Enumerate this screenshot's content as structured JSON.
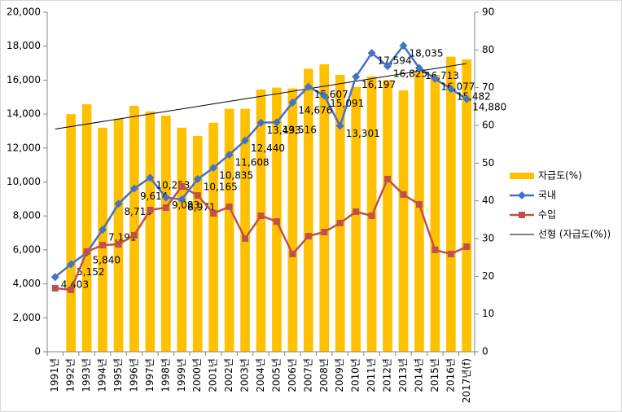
{
  "chart_data": {
    "type": "combo",
    "categories": [
      "1991년",
      "1992년",
      "1993년",
      "1994년",
      "1995년",
      "1996년",
      "1997년",
      "1998년",
      "1999년",
      "2000년",
      "2001년",
      "2002년",
      "2003년",
      "2004년",
      "2005년",
      "2006년",
      "2007년",
      "2008년",
      "2009년",
      "2010년",
      "2011년",
      "2012년",
      "2013년",
      "2014년",
      "2015년",
      "2016년",
      "2017년(f)"
    ],
    "series": [
      {
        "name": "자급도(%)",
        "type": "bar",
        "axis": "y2",
        "color": "#FFC000",
        "values": [
          null,
          63,
          65.6,
          59.4,
          61.8,
          65.2,
          63.7,
          62.6,
          59.4,
          57.2,
          60.7,
          64.4,
          64.4,
          69.5,
          70,
          69.8,
          75,
          76.2,
          73.4,
          70.2,
          73,
          72,
          69.3,
          74.3,
          73.4,
          78.2,
          77.5
        ]
      },
      {
        "name": "국내",
        "type": "line",
        "marker": "diamond",
        "color": "#4472C4",
        "values": [
          4403,
          5152,
          5840,
          7191,
          8715,
          9614,
          10253,
          9083,
          8971,
          10165,
          10835,
          11608,
          12440,
          13493,
          13516,
          14676,
          15607,
          15091,
          13301,
          16197,
          17594,
          16825,
          18035,
          16713,
          16077,
          15482,
          14880
        ],
        "value_labels": [
          "4,403",
          "5,152",
          "5,840",
          "7,191",
          "8,715",
          "9,614",
          "10,253",
          "9,083",
          "8,971",
          "10,165",
          "10,835",
          "11,608",
          "12,440",
          "13,493",
          "13,516",
          "14,676",
          "15,607",
          "15,091",
          "13,301",
          "16,197",
          "17,594",
          "16,825",
          "18,035",
          "16,713",
          "16,077",
          "15,482",
          "14,880"
        ]
      },
      {
        "name": "수입",
        "type": "line",
        "marker": "square",
        "color": "#C0504D",
        "values": [
          3740,
          3650,
          5900,
          6280,
          6330,
          6860,
          8350,
          8490,
          9740,
          9210,
          8150,
          8540,
          6670,
          8010,
          7670,
          5760,
          6810,
          7050,
          7580,
          8250,
          8010,
          10170,
          9260,
          8680,
          6000,
          5760,
          6190
        ]
      }
    ],
    "trendline": {
      "name": "선형 (자급도(%))",
      "of": "자급도(%)",
      "color": "#000000"
    },
    "ylim": [
      0,
      20000
    ],
    "yticks": [
      0,
      {
        "value": 2000,
        "label": "2,000"
      },
      {
        "value": 4000,
        "label": "4,000"
      },
      {
        "value": 6000,
        "label": "6,000"
      },
      {
        "value": 8000,
        "label": "8,000"
      },
      {
        "value": 10000,
        "label": "10,000"
      },
      {
        "value": 12000,
        "label": "12,000"
      },
      {
        "value": 14000,
        "label": "14,000"
      },
      {
        "value": 16000,
        "label": "16,000"
      },
      {
        "value": 18000,
        "label": "18,000"
      },
      {
        "value": 20000,
        "label": "20,000"
      }
    ],
    "y2lim": [
      0,
      90
    ],
    "y2ticks": [
      0,
      10,
      20,
      30,
      40,
      50,
      60,
      70,
      80,
      90
    ],
    "grid": false,
    "legend": "right"
  }
}
